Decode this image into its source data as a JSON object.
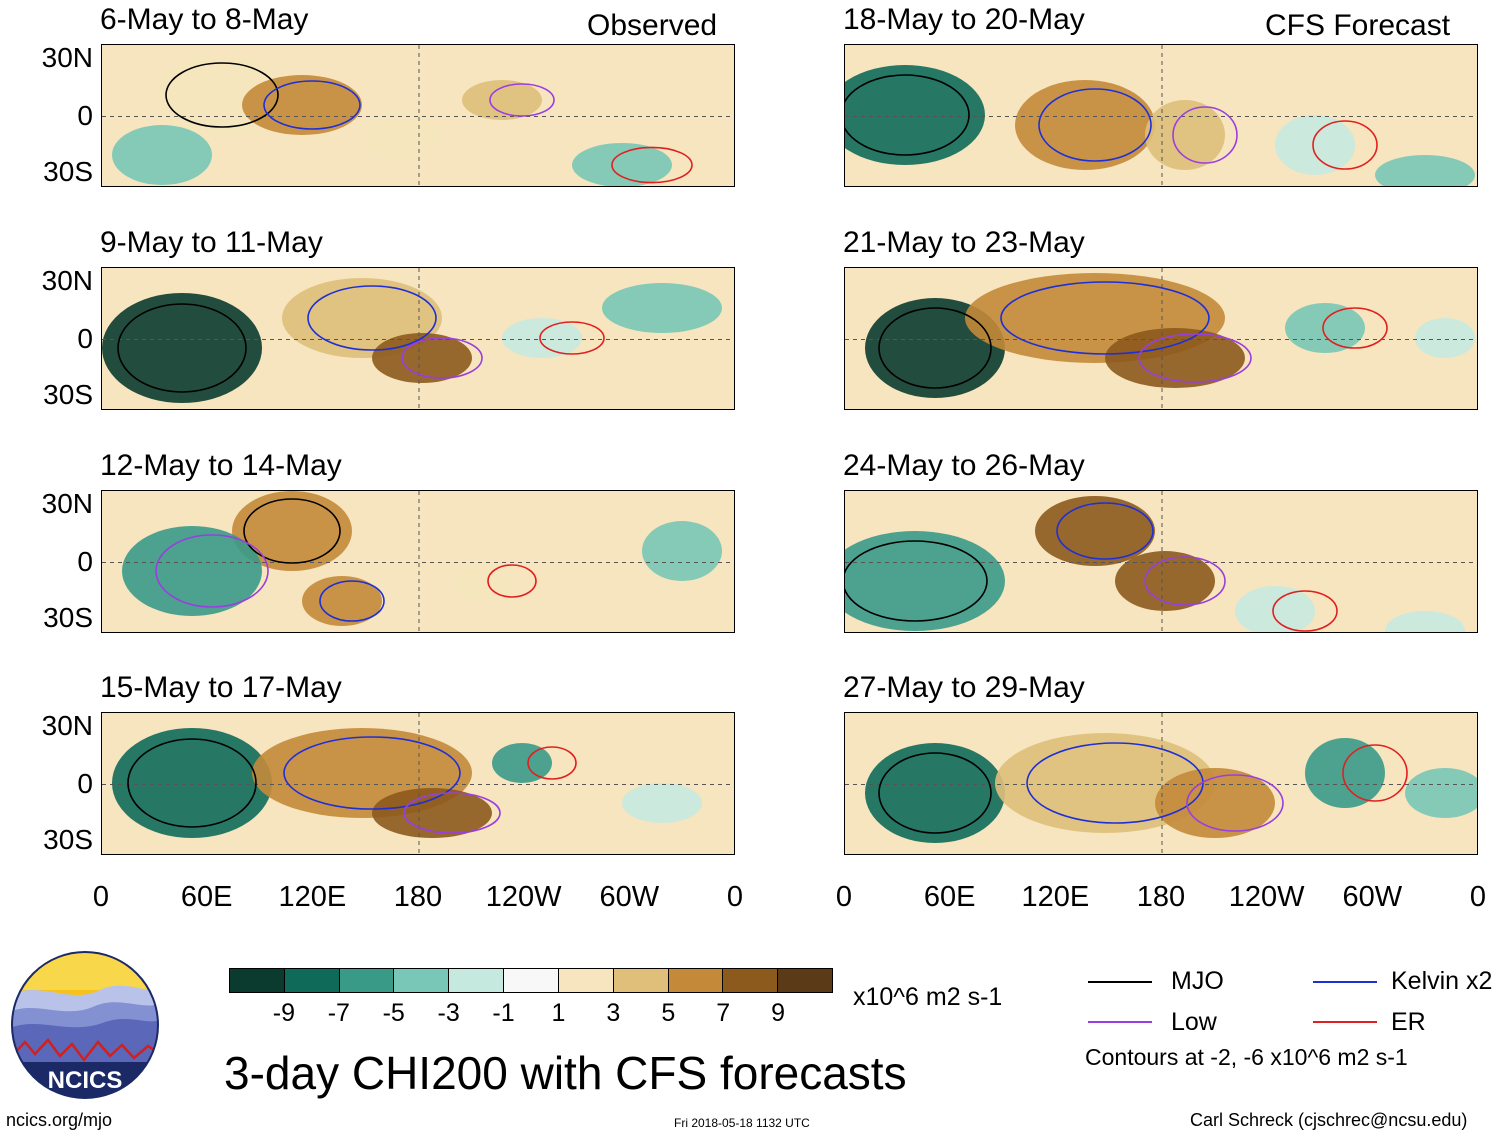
{
  "panels_left": [
    {
      "title": "6-May to 8-May",
      "tag": "Observed"
    },
    {
      "title": "9-May to 11-May",
      "tag": ""
    },
    {
      "title": "12-May to 14-May",
      "tag": ""
    },
    {
      "title": "15-May to 17-May",
      "tag": ""
    }
  ],
  "panels_right": [
    {
      "title": "18-May to 20-May",
      "tag": "CFS Forecast"
    },
    {
      "title": "21-May to 23-May",
      "tag": ""
    },
    {
      "title": "24-May to 26-May",
      "tag": ""
    },
    {
      "title": "27-May to 29-May",
      "tag": ""
    }
  ],
  "lat_labels": [
    "30N",
    "0",
    "30S"
  ],
  "lon_labels": [
    "0",
    "60E",
    "120E",
    "180",
    "120W",
    "60W",
    "0"
  ],
  "colorbar": {
    "colors": [
      "#0b3b2f",
      "#0f6a5a",
      "#3a9a88",
      "#79c7b6",
      "#c6e9df",
      "#f8f8f8",
      "#f6e5be",
      "#dfbf7a",
      "#c48a3a",
      "#8d5a1d",
      "#5a3a17"
    ],
    "ticks": [
      "-9",
      "-7",
      "-5",
      "-3",
      "-1",
      "1",
      "3",
      "5",
      "7",
      "9"
    ],
    "units": "x10^6 m2 s-1"
  },
  "main_title": "3-day CHI200 with CFS forecasts",
  "legend": {
    "items": [
      {
        "label": "MJO",
        "color": "#000000"
      },
      {
        "label": "Kelvin x2",
        "color": "#1f2fd6"
      },
      {
        "label": "Low",
        "color": "#9a3ee0"
      },
      {
        "label": "ER",
        "color": "#e02020"
      }
    ],
    "note": "Contours at -2, -6 x10^6 m2 s-1"
  },
  "logo_text": "NCICS",
  "footer": {
    "url": "ncics.org/mjo",
    "date": "Fri 2018-05-18 1132 UTC",
    "author": "Carl Schreck (cjschrec@ncsu.edu)"
  }
}
